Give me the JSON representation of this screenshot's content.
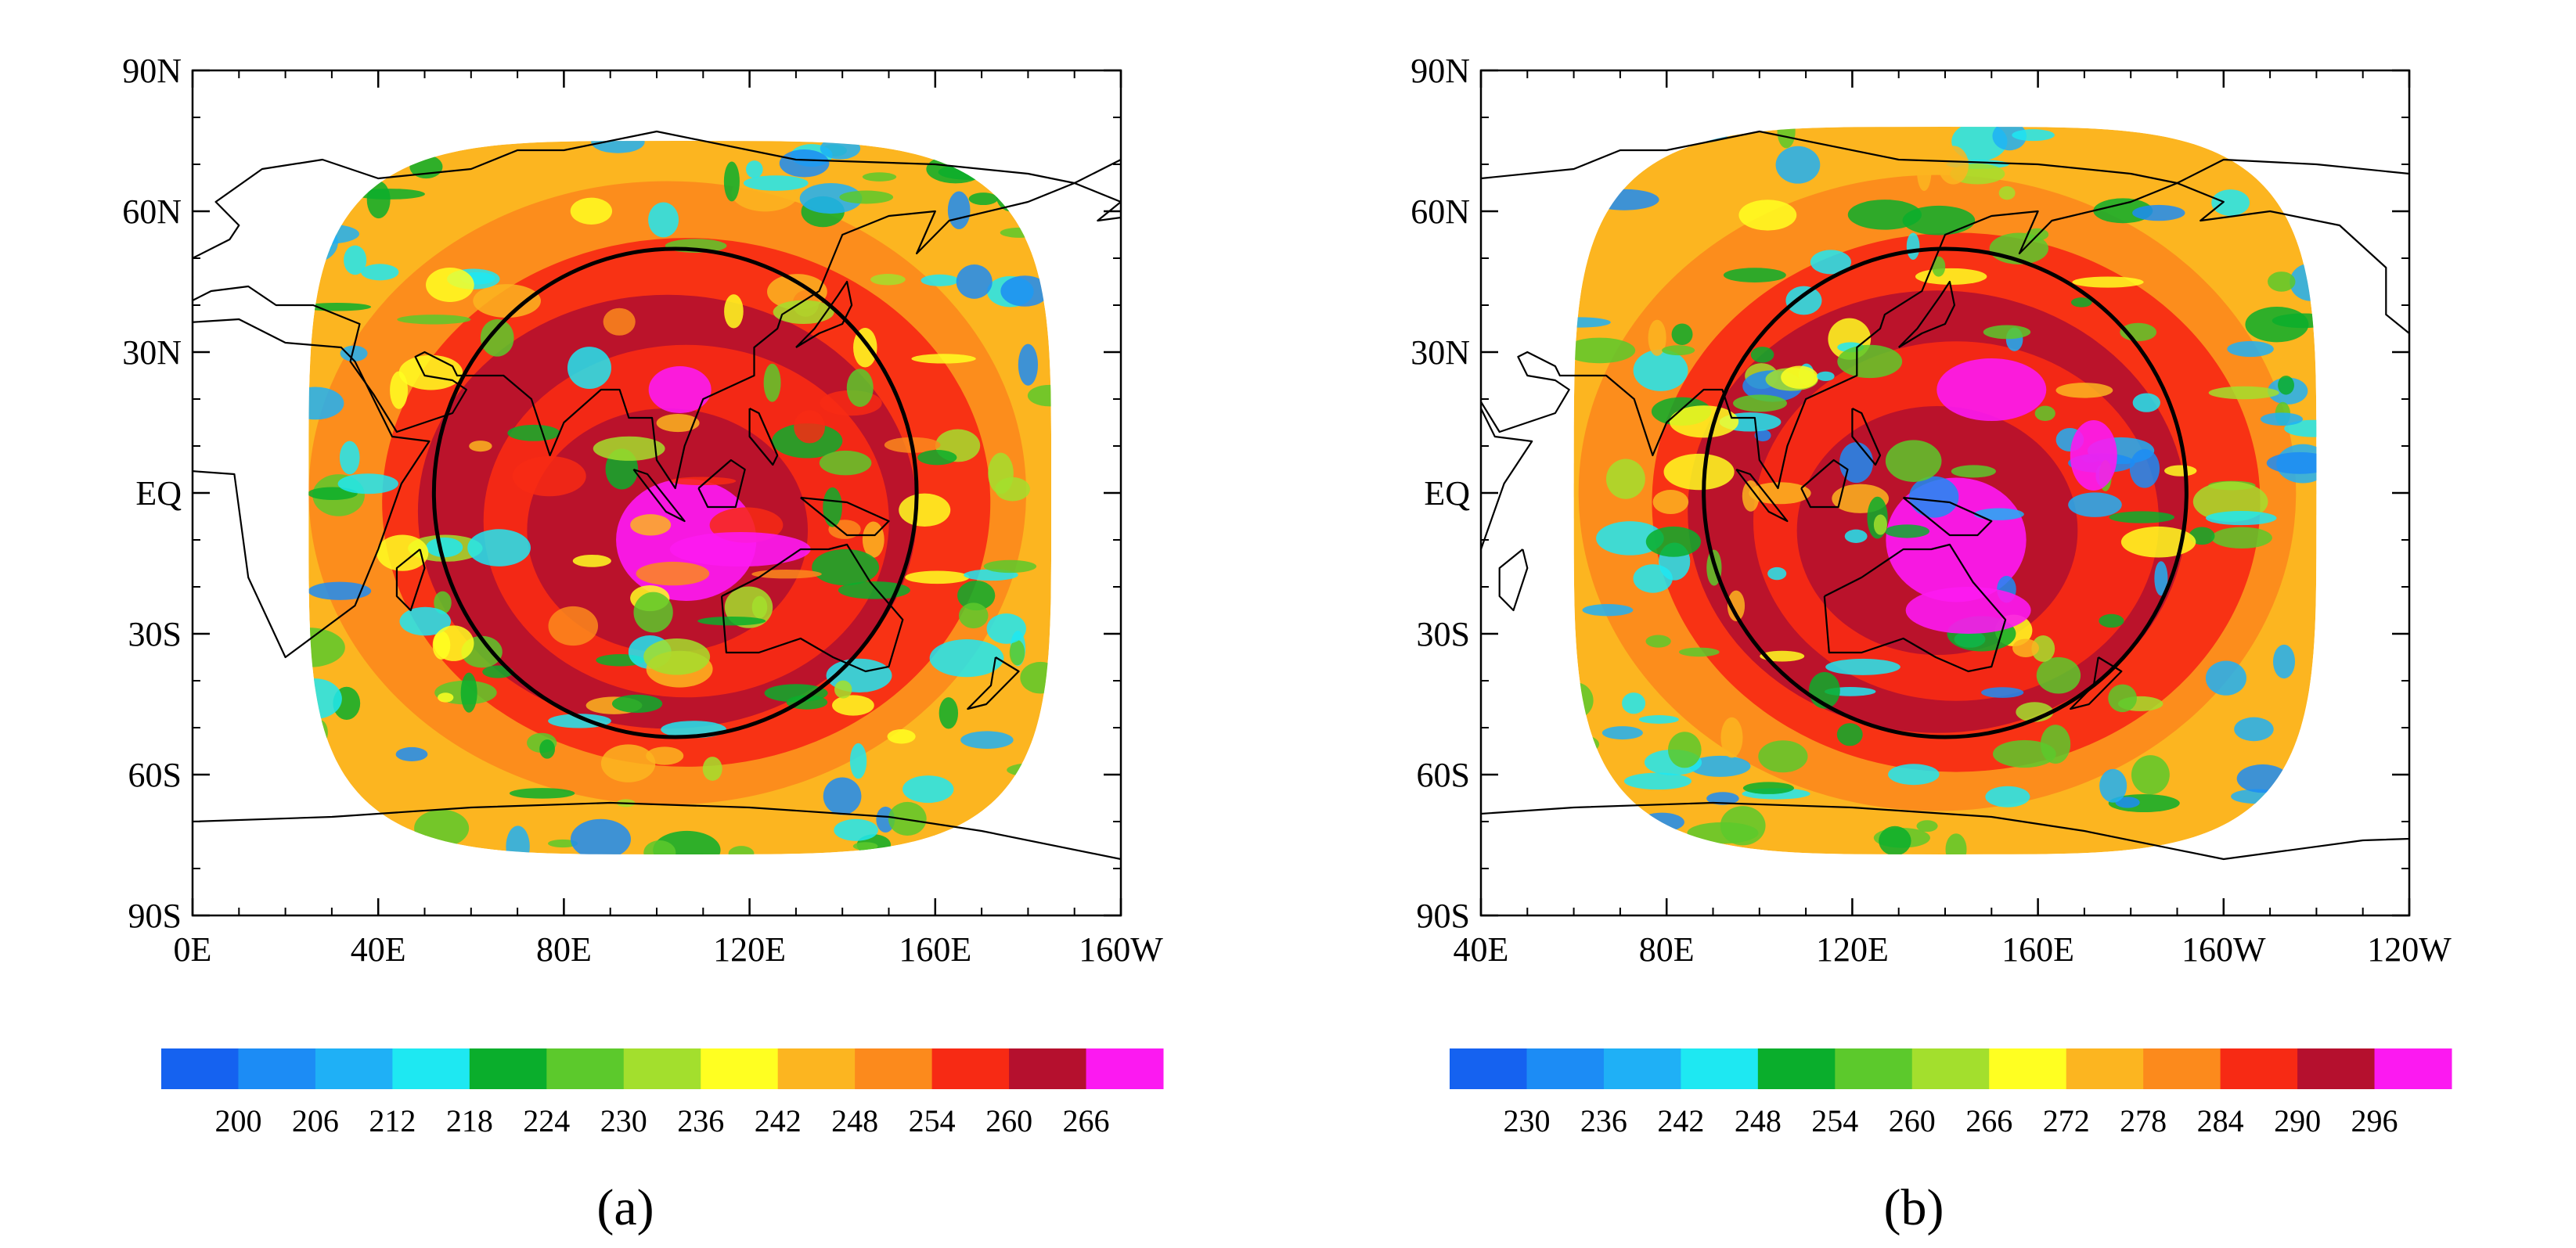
{
  "chart_data": [
    {
      "type": "heatmap",
      "panel_label": "(a)",
      "title": "",
      "lon_ticks": [
        {
          "value": 0,
          "label": "0E"
        },
        {
          "value": 40,
          "label": "40E"
        },
        {
          "value": 80,
          "label": "80E"
        },
        {
          "value": 120,
          "label": "120E"
        },
        {
          "value": 160,
          "label": "160E"
        },
        {
          "value": 200,
          "label": "160W"
        }
      ],
      "lat_ticks": [
        {
          "value": 90,
          "label": "90N"
        },
        {
          "value": 60,
          "label": "60N"
        },
        {
          "value": 30,
          "label": "30N"
        },
        {
          "value": 0,
          "label": "EQ"
        },
        {
          "value": -30,
          "label": "30S"
        },
        {
          "value": -60,
          "label": "60S"
        },
        {
          "value": -90,
          "label": "90S"
        }
      ],
      "xlim": [
        0,
        200
      ],
      "ylim": [
        -90,
        90
      ],
      "disk_lon_range": [
        25,
        185
      ],
      "disk_lat_range": [
        -77,
        75
      ],
      "circle": {
        "center_lon": 104,
        "center_lat": 0,
        "radius_lon": 52,
        "radius_lat": 52
      },
      "colorbar": {
        "levels": [
          200,
          206,
          212,
          218,
          224,
          230,
          236,
          242,
          248,
          254,
          260,
          266
        ],
        "colors": [
          "#1562f0",
          "#1c8cf5",
          "#1fb0f6",
          "#1ee8f2",
          "#0aae2c",
          "#5cc92c",
          "#a3df2d",
          "#ffff21",
          "#fcb520",
          "#fc8a1c",
          "#f72a14",
          "#b5102e",
          "#fc19f1"
        ]
      }
    },
    {
      "type": "heatmap",
      "panel_label": "(b)",
      "title": "",
      "lon_ticks": [
        {
          "value": 40,
          "label": "40E"
        },
        {
          "value": 80,
          "label": "80E"
        },
        {
          "value": 120,
          "label": "120E"
        },
        {
          "value": 160,
          "label": "160E"
        },
        {
          "value": 200,
          "label": "160W"
        },
        {
          "value": 240,
          "label": "120W"
        }
      ],
      "lat_ticks": [
        {
          "value": 90,
          "label": "90N"
        },
        {
          "value": 60,
          "label": "60N"
        },
        {
          "value": 30,
          "label": "30N"
        },
        {
          "value": 0,
          "label": "EQ"
        },
        {
          "value": -30,
          "label": "30S"
        },
        {
          "value": -60,
          "label": "60S"
        },
        {
          "value": -90,
          "label": "90S"
        }
      ],
      "xlim": [
        40,
        240
      ],
      "ylim": [
        -90,
        90
      ],
      "disk_lon_range": [
        60,
        220
      ],
      "disk_lat_range": [
        -77,
        78
      ],
      "circle": {
        "center_lon": 140,
        "center_lat": 0,
        "radius_lon": 52,
        "radius_lat": 52
      },
      "colorbar": {
        "levels": [
          230,
          236,
          242,
          248,
          254,
          260,
          266,
          272,
          278,
          284,
          290,
          296
        ],
        "colors": [
          "#1562f0",
          "#1c8cf5",
          "#1fb0f6",
          "#1ee8f2",
          "#0aae2c",
          "#5cc92c",
          "#a3df2d",
          "#ffff21",
          "#fcb520",
          "#fc8a1c",
          "#f72a14",
          "#b5102e",
          "#fc19f1"
        ]
      }
    }
  ]
}
